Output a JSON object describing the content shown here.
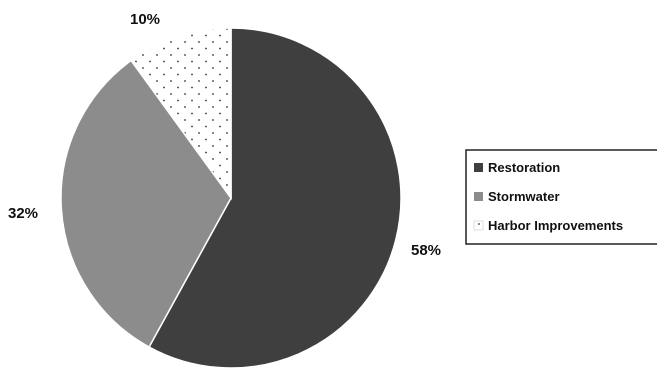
{
  "chart_data": {
    "type": "pie",
    "title": "",
    "slices": [
      {
        "name": "Restoration",
        "value": 58,
        "label": "58%",
        "color": "#3f3f3f",
        "pattern": "solid"
      },
      {
        "name": "Stormwater",
        "value": 32,
        "label": "32%",
        "color": "#8c8c8c",
        "pattern": "solid"
      },
      {
        "name": "Harbor Improvements",
        "value": 10,
        "label": "10%",
        "color": "#ffffff",
        "pattern": "dots"
      }
    ],
    "legend_placement": "right",
    "start_angle": "12 o'clock",
    "direction": "clockwise"
  }
}
